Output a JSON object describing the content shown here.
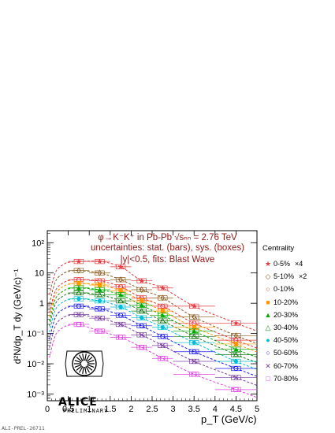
{
  "chart_data": {
    "type": "scatter",
    "title_line1": "φ→K⁻K⁺ in Pb-Pb √sₙₙ = 2.76 TeV",
    "title_line2": "uncertainties: stat. (bars), sys. (boxes)",
    "title_line3": "|y|<0.5, fits: Blast Wave",
    "xlabel": "p_T (GeV/c)",
    "ylabel": "d²N/dp_T dy (GeV/c)⁻¹",
    "x_ticks": [
      "0",
      "0.5",
      "1",
      "1.5",
      "2",
      "2.5",
      "3",
      "3.5",
      "4",
      "4.5",
      "5"
    ],
    "y_ticks": [
      "10⁻³",
      "10⁻²",
      "10⁻¹",
      "1",
      "10",
      "10²"
    ],
    "xlim": [
      0,
      5
    ],
    "ylim": [
      0.0006,
      250
    ],
    "y_scale": "log",
    "legend_title": "Centrality",
    "legend_position": "right",
    "x": [
      0.75,
      1.25,
      1.75,
      2.25,
      2.75,
      3.5,
      4.5
    ],
    "series": [
      {
        "name": "0-5%",
        "scale": "×4",
        "color": "#e4383e",
        "marker": "star",
        "values": [
          24,
          24,
          16,
          5.5,
          3.2,
          0.8,
          0.22
        ]
      },
      {
        "name": "5-10%",
        "scale": "×2",
        "color": "#8b5a1e",
        "marker": "diamond-open",
        "values": [
          12,
          10,
          6,
          2.8,
          1.5,
          0.35,
          0.085
        ]
      },
      {
        "name": "0-10%",
        "scale": "",
        "color": "#e4383e",
        "marker": "circle-open",
        "values": [
          6,
          5.5,
          3.5,
          1.5,
          0.8,
          0.22,
          0.06
        ]
      },
      {
        "name": "10-20%",
        "scale": "",
        "color": "#ff9900",
        "marker": "square",
        "values": [
          4.5,
          4,
          2.6,
          1.2,
          0.55,
          0.16,
          0.045
        ]
      },
      {
        "name": "20-30%",
        "scale": "",
        "color": "#00aa00",
        "marker": "triangle",
        "values": [
          3.2,
          2.8,
          1.9,
          0.85,
          0.4,
          0.12,
          0.03
        ]
      },
      {
        "name": "30-40%",
        "scale": "",
        "color": "#1a7a1a",
        "marker": "triangle-open",
        "values": [
          2.2,
          1.9,
          1.2,
          0.55,
          0.26,
          0.08,
          0.02
        ]
      },
      {
        "name": "40-50%",
        "scale": "",
        "color": "#00bcd4",
        "marker": "circle",
        "values": [
          1.4,
          1.2,
          0.75,
          0.33,
          0.16,
          0.05,
          0.012
        ]
      },
      {
        "name": "50-60%",
        "scale": "",
        "color": "#1a1aee",
        "marker": "circle-open",
        "values": [
          0.8,
          0.65,
          0.4,
          0.18,
          0.08,
          0.025,
          0.007
        ]
      },
      {
        "name": "60-70%",
        "scale": "",
        "color": "#7b3fa0",
        "marker": "cross",
        "values": [
          0.42,
          0.32,
          0.2,
          0.09,
          0.04,
          0.012,
          0.0035
        ]
      },
      {
        "name": "70-80%",
        "scale": "",
        "color": "#e040e0",
        "marker": "square-open",
        "values": [
          0.2,
          0.12,
          0.075,
          0.035,
          0.015,
          0.0045,
          0.0014
        ]
      }
    ]
  },
  "logo": {
    "name": "ALICE",
    "tag": "PRELIMINARY"
  },
  "footer": "ALI-PREL-26711"
}
